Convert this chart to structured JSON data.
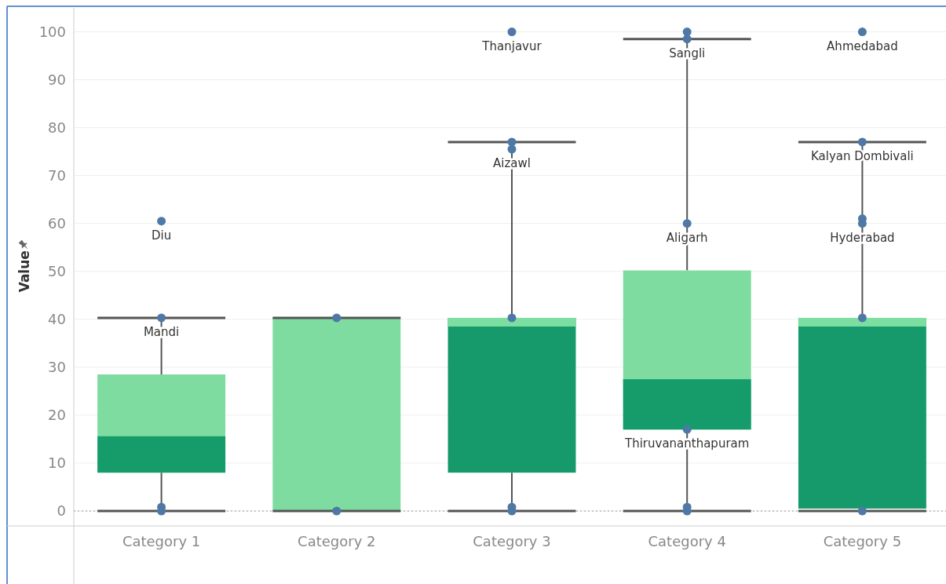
{
  "chart_data": {
    "type": "box",
    "ylabel": "Value",
    "categories": [
      "Category 1",
      "Category 2",
      "Category 3",
      "Category 4",
      "Category 5"
    ],
    "ylim": [
      0,
      105
    ],
    "yticks": [
      0,
      10,
      20,
      30,
      40,
      50,
      60,
      70,
      80,
      90,
      100
    ],
    "grid": "y",
    "ref_lines": [
      {
        "axis": "y",
        "value": 0,
        "line_style": "dotted",
        "color": "#999999"
      }
    ],
    "series": [
      {
        "colors": [
          "#7fdca0",
          "#7fdca0",
          "#169a6c",
          "#7fdca0",
          "#169a6c"
        ],
        "boxes": [
          {
            "low": 0,
            "q1": 8,
            "median": 15.6,
            "q3": 28.5,
            "high": 40.3
          },
          {
            "low": 0,
            "q1": 0,
            "median": 0,
            "q3": 40.3,
            "high": 40.3
          },
          {
            "low": 0,
            "q1": 8,
            "median": 38.5,
            "q3": 40.3,
            "high": 77
          },
          {
            "low": 0,
            "q1": 17,
            "median": 27.5,
            "q3": 50.2,
            "high": 98.5
          },
          {
            "low": 0,
            "q1": 0.5,
            "median": 38.5,
            "q3": 40.3,
            "high": 77
          }
        ]
      },
      {
        "type": "scatter",
        "color": "#4e79a7",
        "marker": "circle",
        "x": [
          "Category 1",
          "Category 1",
          "Category 1",
          "Category 1",
          "Category 2",
          "Category 2",
          "Category 3",
          "Category 3",
          "Category 3",
          "Category 3",
          "Category 3",
          "Category 3",
          "Category 4",
          "Category 4",
          "Category 4",
          "Category 4",
          "Category 4",
          "Category 4",
          "Category 5",
          "Category 5",
          "Category 5",
          "Category 5",
          "Category 5",
          "Category 5"
        ],
        "values": [
          60.5,
          40.3,
          0.8,
          0,
          40.3,
          0,
          100,
          77,
          75.5,
          40.3,
          0.8,
          0,
          100,
          98.5,
          60,
          17,
          0.8,
          0,
          100,
          77,
          61,
          60,
          40.3,
          0
        ],
        "value_labels": [
          "Diu",
          "Mandi",
          null,
          null,
          null,
          null,
          "Thanjavur",
          null,
          "Aizawl",
          null,
          null,
          null,
          null,
          "Sangli",
          "Aligarh",
          "Thiruvananthapuram",
          null,
          null,
          "Ahmedabad",
          "Kalyan Dombivali",
          null,
          "Hyderabad",
          null,
          null
        ]
      }
    ]
  }
}
